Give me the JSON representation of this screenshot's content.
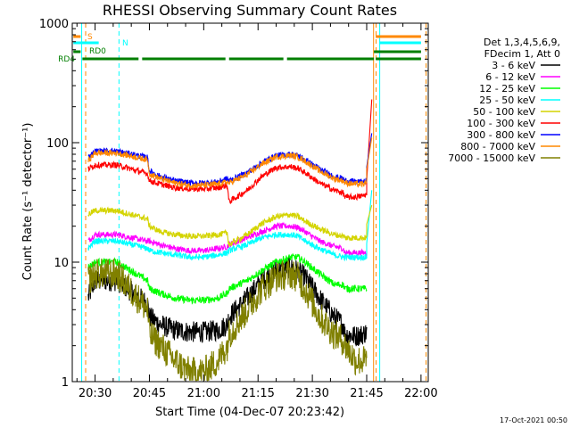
{
  "chart_data": {
    "type": "line",
    "title": "RHESSI Observing Summary Count Rates",
    "xlabel": "Start Time (04-Dec-07 20:23:42)",
    "ylabel": "Count Rate (s⁻¹ detector⁻¹)",
    "footer": "17-Oct-2021 00:50",
    "y_scale": "log",
    "ylim": [
      1,
      1000
    ],
    "xlim_minutes": [
      23.7,
      122
    ],
    "x_ticks": [
      {
        "t": 30,
        "label": "20:30"
      },
      {
        "t": 45,
        "label": "20:45"
      },
      {
        "t": 60,
        "label": "21:00"
      },
      {
        "t": 75,
        "label": "21:15"
      },
      {
        "t": 90,
        "label": "21:30"
      },
      {
        "t": 105,
        "label": "21:45"
      },
      {
        "t": 120,
        "label": "22:00"
      }
    ],
    "y_ticks": [
      {
        "v": 1,
        "label": "1"
      },
      {
        "v": 10,
        "label": "10"
      },
      {
        "v": 100,
        "label": "100"
      },
      {
        "v": 1000,
        "label": "1000"
      }
    ],
    "legend_header": [
      "Det 1,3,4,5,6,9,",
      "FDecim 1, Att 0"
    ],
    "legend_position": "right",
    "x_node_minutes": [
      24,
      28,
      30,
      35,
      36,
      44.5,
      45,
      48,
      52,
      56,
      60,
      64,
      66.5,
      67,
      72,
      76,
      80,
      84,
      86,
      88,
      92,
      96,
      98.5,
      99,
      102,
      104,
      105
    ],
    "series": [
      {
        "name": "3 - 6 keV",
        "color": "#000000",
        "values": [
          null,
          5,
          7,
          7,
          7,
          4.5,
          3.5,
          3,
          2.7,
          2.6,
          2.6,
          2.7,
          3,
          3.5,
          5,
          7,
          8.5,
          9,
          8.5,
          7.5,
          5,
          3.5,
          3,
          2.5,
          2.4,
          2.5,
          2.6
        ]
      },
      {
        "name": "6 - 12 keV",
        "color": "#ff00ff",
        "values": [
          null,
          15,
          17,
          17,
          17,
          15,
          15,
          14,
          13,
          12.5,
          12.5,
          13,
          13.5,
          14,
          16,
          18,
          20,
          20,
          19.5,
          18,
          15,
          13.5,
          13,
          12,
          12,
          12,
          12
        ]
      },
      {
        "name": "12 - 25 keV",
        "color": "#00ff00",
        "values": [
          null,
          9,
          10,
          10,
          10,
          7,
          6,
          5.5,
          5,
          4.8,
          4.8,
          5,
          5.5,
          6,
          7,
          8.5,
          10,
          11,
          11,
          10,
          8,
          6.5,
          6.5,
          6,
          6,
          6,
          6
        ]
      },
      {
        "name": "25 - 50 keV",
        "color": "#00ffff",
        "values": [
          null,
          13,
          15,
          15,
          15,
          13,
          12.5,
          12,
          11.5,
          11,
          11,
          11.5,
          12,
          12.5,
          14,
          16,
          17,
          17,
          16.5,
          15,
          13,
          11.5,
          11,
          11,
          11,
          11,
          11
        ]
      },
      {
        "name": "50 - 100 keV",
        "color": "#d4d400",
        "values": [
          null,
          25,
          27,
          27,
          27,
          23,
          20,
          18,
          17,
          16.5,
          16.5,
          17,
          17.5,
          14,
          17,
          21,
          24,
          25,
          24,
          22,
          19,
          17,
          16.5,
          16,
          16,
          16,
          16
        ]
      },
      {
        "name": "100 - 300 keV",
        "color": "#ff0000",
        "values": [
          null,
          60,
          65,
          65,
          65,
          55,
          48,
          45,
          42,
          41,
          41,
          42,
          44,
          32,
          40,
          52,
          62,
          63,
          61,
          56,
          46,
          40,
          38,
          35,
          35,
          36,
          37
        ]
      },
      {
        "name": "300 - 800 keV",
        "color": "#0000ff",
        "values": [
          null,
          75,
          85,
          85,
          85,
          75,
          58,
          52,
          48,
          46,
          46,
          47,
          50,
          48,
          56,
          68,
          78,
          80,
          78,
          72,
          60,
          52,
          50,
          48,
          47,
          47,
          48
        ]
      },
      {
        "name": "800 - 7000 keV",
        "color": "#ff8800",
        "values": [
          null,
          70,
          82,
          82,
          82,
          72,
          55,
          50,
          46,
          44,
          44,
          45,
          47,
          46,
          54,
          66,
          76,
          78,
          76,
          70,
          58,
          50,
          48,
          46,
          45,
          45,
          46
        ]
      },
      {
        "name": "7000 - 15000 keV",
        "color": "#808000",
        "values": [
          null,
          7,
          8,
          8,
          8,
          4,
          2.5,
          2,
          1.5,
          1.2,
          1.2,
          1.5,
          2,
          2.5,
          4,
          6,
          7.5,
          8,
          7.5,
          6,
          3.5,
          2.5,
          2.2,
          2,
          1.5,
          1.5,
          1.5
        ]
      }
    ],
    "status_bars": [
      {
        "label": "S",
        "color": "#ff8800",
        "level": 1.0,
        "segments": [
          [
            24,
            26
          ],
          [
            107.5,
            120
          ]
        ]
      },
      {
        "label": "N",
        "color": "#00ffff",
        "level": 0.92,
        "segments": [
          [
            24,
            31
          ],
          [
            108.5,
            120
          ]
        ]
      },
      {
        "label": "RD0",
        "color": "#007f00",
        "level": 0.84,
        "segments": [
          [
            24,
            26
          ],
          [
            107,
            120
          ]
        ]
      },
      {
        "label": "RD4",
        "color": "#007f00",
        "level": 0.76,
        "segments": [
          [
            26.5,
            42
          ],
          [
            43,
            66
          ],
          [
            67,
            82
          ],
          [
            83,
            107
          ],
          [
            107.5,
            120
          ]
        ]
      }
    ],
    "event_lines": [
      {
        "t": 26.3,
        "color": "#00ffff",
        "style": "solid"
      },
      {
        "t": 27.4,
        "color": "#ff8800",
        "style": "dashed"
      },
      {
        "t": 36.6,
        "color": "#00ffff",
        "style": "dashed"
      },
      {
        "t": 106.9,
        "color": "#ff8800",
        "style": "solid"
      },
      {
        "t": 107.6,
        "color": "#ff8800",
        "style": "dashed"
      },
      {
        "t": 108.6,
        "color": "#00ffff",
        "style": "solid"
      },
      {
        "t": 121.4,
        "color": "#ff8800",
        "style": "dashed"
      }
    ],
    "flare": {
      "t": [
        105,
        106.4
      ],
      "values": {
        "100 - 300 keV": 230,
        "300 - 800 keV": 120,
        "800 - 7000 keV": 110,
        "25 - 50 keV": 40,
        "50 - 100 keV": 30
      }
    }
  }
}
